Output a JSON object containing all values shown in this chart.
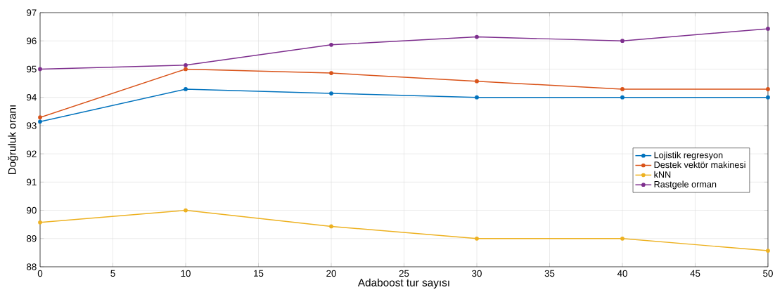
{
  "chart_data": {
    "type": "line",
    "xlabel": "Adaboost tur sayısı",
    "ylabel": "Doğruluk oranı",
    "x": [
      0,
      10,
      20,
      30,
      40,
      50
    ],
    "series": [
      {
        "name": "Lojistik regresyon",
        "color": "#0072bd",
        "values": [
          93.14,
          94.29,
          94.14,
          94.0,
          94.0,
          94.0
        ]
      },
      {
        "name": "Destek vektör makinesi",
        "color": "#d95319",
        "values": [
          93.29,
          95.0,
          94.86,
          94.57,
          94.29,
          94.29
        ]
      },
      {
        "name": "kNN",
        "color": "#edb120",
        "values": [
          89.57,
          90.0,
          89.43,
          89.0,
          89.0,
          88.57
        ]
      },
      {
        "name": "Rastgele orman",
        "color": "#7e2f8e",
        "values": [
          95.0,
          95.14,
          95.86,
          96.14,
          96.0,
          96.43
        ]
      }
    ],
    "xlim": [
      0,
      50
    ],
    "xticks": [
      0,
      5,
      10,
      15,
      20,
      25,
      30,
      35,
      40,
      45,
      50
    ],
    "ylim": [
      88,
      97
    ],
    "yticks": [
      88,
      89,
      90,
      91,
      92,
      93,
      94,
      95,
      96,
      97
    ],
    "grid": true,
    "legend": "right",
    "marker": "circle",
    "line_style": "solid"
  }
}
